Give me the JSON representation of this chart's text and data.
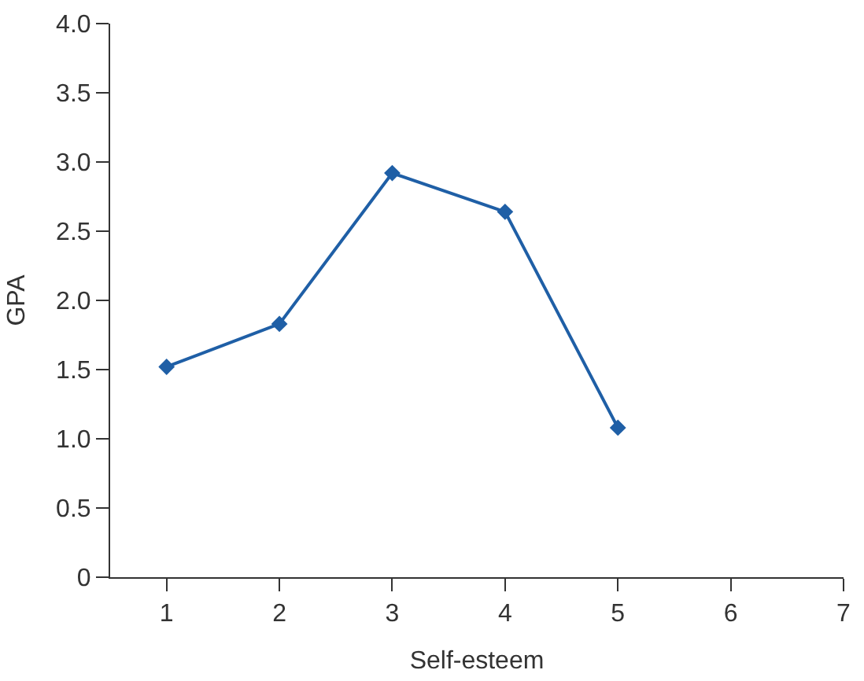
{
  "chart_data": {
    "type": "line",
    "xlabel": "Self-esteem",
    "ylabel": "GPA",
    "x": [
      1,
      2,
      3,
      4,
      5
    ],
    "series": [
      {
        "color": "#1f5fa6",
        "values": [
          1.52,
          1.83,
          2.92,
          2.64,
          1.08
        ]
      }
    ],
    "xlim": [
      0.5,
      7
    ],
    "xticks": [
      1,
      2,
      3,
      4,
      5,
      6,
      7
    ],
    "ylim": [
      0,
      4
    ],
    "yticks": [
      0,
      {
        "value": 0.5,
        "label": "0.5"
      },
      {
        "value": 1,
        "label": "1.0"
      },
      {
        "value": 1.5,
        "label": "1.5"
      },
      {
        "value": 2,
        "label": "2.0"
      },
      {
        "value": 2.5,
        "label": "2.5"
      },
      {
        "value": 3,
        "label": "3.0"
      },
      {
        "value": 3.5,
        "label": "3.5"
      },
      {
        "value": 4,
        "label": "4.0"
      }
    ],
    "marker": "diamond",
    "line_style": "solid"
  }
}
